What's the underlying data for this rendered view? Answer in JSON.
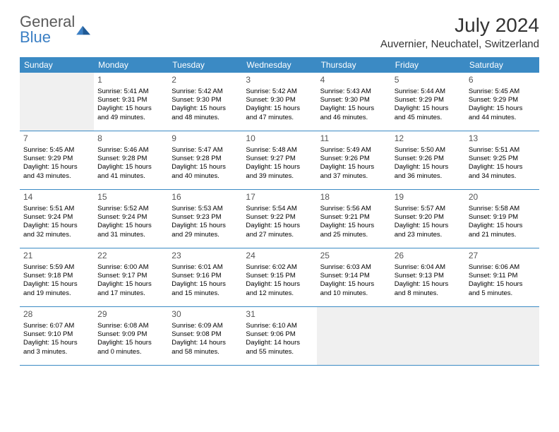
{
  "logo": {
    "line1": "General",
    "line2": "Blue"
  },
  "title": "July 2024",
  "location": "Auvernier, Neuchatel, Switzerland",
  "weekdays": [
    "Sunday",
    "Monday",
    "Tuesday",
    "Wednesday",
    "Thursday",
    "Friday",
    "Saturday"
  ],
  "colors": {
    "header_bg": "#3b8ac4",
    "header_text": "#ffffff",
    "logo_gray": "#5a5a5a",
    "logo_blue": "#3b7fc4",
    "border": "#3b8ac4",
    "empty_bg": "#f0f0f0"
  },
  "weeks": [
    [
      {
        "empty": true
      },
      {
        "day": "1",
        "sunrise": "Sunrise: 5:41 AM",
        "sunset": "Sunset: 9:31 PM",
        "daylight1": "Daylight: 15 hours",
        "daylight2": "and 49 minutes."
      },
      {
        "day": "2",
        "sunrise": "Sunrise: 5:42 AM",
        "sunset": "Sunset: 9:30 PM",
        "daylight1": "Daylight: 15 hours",
        "daylight2": "and 48 minutes."
      },
      {
        "day": "3",
        "sunrise": "Sunrise: 5:42 AM",
        "sunset": "Sunset: 9:30 PM",
        "daylight1": "Daylight: 15 hours",
        "daylight2": "and 47 minutes."
      },
      {
        "day": "4",
        "sunrise": "Sunrise: 5:43 AM",
        "sunset": "Sunset: 9:30 PM",
        "daylight1": "Daylight: 15 hours",
        "daylight2": "and 46 minutes."
      },
      {
        "day": "5",
        "sunrise": "Sunrise: 5:44 AM",
        "sunset": "Sunset: 9:29 PM",
        "daylight1": "Daylight: 15 hours",
        "daylight2": "and 45 minutes."
      },
      {
        "day": "6",
        "sunrise": "Sunrise: 5:45 AM",
        "sunset": "Sunset: 9:29 PM",
        "daylight1": "Daylight: 15 hours",
        "daylight2": "and 44 minutes."
      }
    ],
    [
      {
        "day": "7",
        "sunrise": "Sunrise: 5:45 AM",
        "sunset": "Sunset: 9:29 PM",
        "daylight1": "Daylight: 15 hours",
        "daylight2": "and 43 minutes."
      },
      {
        "day": "8",
        "sunrise": "Sunrise: 5:46 AM",
        "sunset": "Sunset: 9:28 PM",
        "daylight1": "Daylight: 15 hours",
        "daylight2": "and 41 minutes."
      },
      {
        "day": "9",
        "sunrise": "Sunrise: 5:47 AM",
        "sunset": "Sunset: 9:28 PM",
        "daylight1": "Daylight: 15 hours",
        "daylight2": "and 40 minutes."
      },
      {
        "day": "10",
        "sunrise": "Sunrise: 5:48 AM",
        "sunset": "Sunset: 9:27 PM",
        "daylight1": "Daylight: 15 hours",
        "daylight2": "and 39 minutes."
      },
      {
        "day": "11",
        "sunrise": "Sunrise: 5:49 AM",
        "sunset": "Sunset: 9:26 PM",
        "daylight1": "Daylight: 15 hours",
        "daylight2": "and 37 minutes."
      },
      {
        "day": "12",
        "sunrise": "Sunrise: 5:50 AM",
        "sunset": "Sunset: 9:26 PM",
        "daylight1": "Daylight: 15 hours",
        "daylight2": "and 36 minutes."
      },
      {
        "day": "13",
        "sunrise": "Sunrise: 5:51 AM",
        "sunset": "Sunset: 9:25 PM",
        "daylight1": "Daylight: 15 hours",
        "daylight2": "and 34 minutes."
      }
    ],
    [
      {
        "day": "14",
        "sunrise": "Sunrise: 5:51 AM",
        "sunset": "Sunset: 9:24 PM",
        "daylight1": "Daylight: 15 hours",
        "daylight2": "and 32 minutes."
      },
      {
        "day": "15",
        "sunrise": "Sunrise: 5:52 AM",
        "sunset": "Sunset: 9:24 PM",
        "daylight1": "Daylight: 15 hours",
        "daylight2": "and 31 minutes."
      },
      {
        "day": "16",
        "sunrise": "Sunrise: 5:53 AM",
        "sunset": "Sunset: 9:23 PM",
        "daylight1": "Daylight: 15 hours",
        "daylight2": "and 29 minutes."
      },
      {
        "day": "17",
        "sunrise": "Sunrise: 5:54 AM",
        "sunset": "Sunset: 9:22 PM",
        "daylight1": "Daylight: 15 hours",
        "daylight2": "and 27 minutes."
      },
      {
        "day": "18",
        "sunrise": "Sunrise: 5:56 AM",
        "sunset": "Sunset: 9:21 PM",
        "daylight1": "Daylight: 15 hours",
        "daylight2": "and 25 minutes."
      },
      {
        "day": "19",
        "sunrise": "Sunrise: 5:57 AM",
        "sunset": "Sunset: 9:20 PM",
        "daylight1": "Daylight: 15 hours",
        "daylight2": "and 23 minutes."
      },
      {
        "day": "20",
        "sunrise": "Sunrise: 5:58 AM",
        "sunset": "Sunset: 9:19 PM",
        "daylight1": "Daylight: 15 hours",
        "daylight2": "and 21 minutes."
      }
    ],
    [
      {
        "day": "21",
        "sunrise": "Sunrise: 5:59 AM",
        "sunset": "Sunset: 9:18 PM",
        "daylight1": "Daylight: 15 hours",
        "daylight2": "and 19 minutes."
      },
      {
        "day": "22",
        "sunrise": "Sunrise: 6:00 AM",
        "sunset": "Sunset: 9:17 PM",
        "daylight1": "Daylight: 15 hours",
        "daylight2": "and 17 minutes."
      },
      {
        "day": "23",
        "sunrise": "Sunrise: 6:01 AM",
        "sunset": "Sunset: 9:16 PM",
        "daylight1": "Daylight: 15 hours",
        "daylight2": "and 15 minutes."
      },
      {
        "day": "24",
        "sunrise": "Sunrise: 6:02 AM",
        "sunset": "Sunset: 9:15 PM",
        "daylight1": "Daylight: 15 hours",
        "daylight2": "and 12 minutes."
      },
      {
        "day": "25",
        "sunrise": "Sunrise: 6:03 AM",
        "sunset": "Sunset: 9:14 PM",
        "daylight1": "Daylight: 15 hours",
        "daylight2": "and 10 minutes."
      },
      {
        "day": "26",
        "sunrise": "Sunrise: 6:04 AM",
        "sunset": "Sunset: 9:13 PM",
        "daylight1": "Daylight: 15 hours",
        "daylight2": "and 8 minutes."
      },
      {
        "day": "27",
        "sunrise": "Sunrise: 6:06 AM",
        "sunset": "Sunset: 9:11 PM",
        "daylight1": "Daylight: 15 hours",
        "daylight2": "and 5 minutes."
      }
    ],
    [
      {
        "day": "28",
        "sunrise": "Sunrise: 6:07 AM",
        "sunset": "Sunset: 9:10 PM",
        "daylight1": "Daylight: 15 hours",
        "daylight2": "and 3 minutes."
      },
      {
        "day": "29",
        "sunrise": "Sunrise: 6:08 AM",
        "sunset": "Sunset: 9:09 PM",
        "daylight1": "Daylight: 15 hours",
        "daylight2": "and 0 minutes."
      },
      {
        "day": "30",
        "sunrise": "Sunrise: 6:09 AM",
        "sunset": "Sunset: 9:08 PM",
        "daylight1": "Daylight: 14 hours",
        "daylight2": "and 58 minutes."
      },
      {
        "day": "31",
        "sunrise": "Sunrise: 6:10 AM",
        "sunset": "Sunset: 9:06 PM",
        "daylight1": "Daylight: 14 hours",
        "daylight2": "and 55 minutes."
      },
      {
        "empty": true
      },
      {
        "empty": true
      },
      {
        "empty": true
      }
    ]
  ]
}
